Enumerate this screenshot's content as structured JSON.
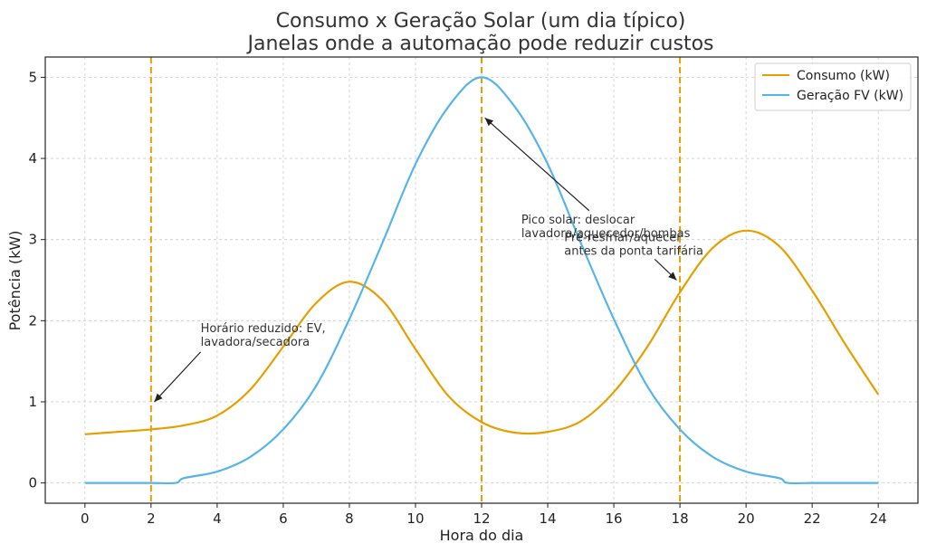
{
  "chart_data": {
    "type": "line",
    "title": [
      "Consumo x Geração Solar (um dia típico)",
      "Janelas onde a automação pode reduzir custos"
    ],
    "xlabel": "Hora do dia",
    "ylabel": "Potência (kW)",
    "xlim": [
      -1.2,
      25.2
    ],
    "ylim": [
      -0.25,
      5.25
    ],
    "xticks": [
      0,
      2,
      4,
      6,
      8,
      10,
      12,
      14,
      16,
      18,
      20,
      22,
      24
    ],
    "yticks": [
      0,
      1,
      2,
      3,
      4,
      5
    ],
    "grid": true,
    "legend_position": "top-right",
    "series": [
      {
        "name": "Consumo (kW)",
        "color": "#E69F00",
        "x": [
          0,
          1,
          2,
          3,
          4,
          5,
          6,
          7,
          8,
          9,
          10,
          11,
          12,
          13,
          14,
          15,
          16,
          17,
          18,
          19,
          20,
          21,
          22,
          23,
          24
        ],
        "y": [
          0.6,
          0.63,
          0.66,
          0.71,
          0.83,
          1.15,
          1.68,
          2.22,
          2.48,
          2.25,
          1.65,
          1.07,
          0.75,
          0.62,
          0.63,
          0.76,
          1.12,
          1.67,
          2.35,
          2.9,
          3.11,
          2.92,
          2.37,
          1.71,
          1.09
        ]
      },
      {
        "name": "Geração FV (kW)",
        "color": "#56B4E9",
        "x": [
          0,
          1,
          2,
          2.75,
          3,
          4,
          5,
          6,
          7,
          8,
          9,
          10,
          11,
          12,
          13,
          14,
          15,
          16,
          17,
          18,
          19,
          20,
          21,
          21.25,
          22,
          23,
          24
        ],
        "y": [
          0,
          0,
          0,
          0,
          0.06,
          0.14,
          0.32,
          0.66,
          1.2,
          2.02,
          2.96,
          3.93,
          4.64,
          5.0,
          4.64,
          3.93,
          2.96,
          2.02,
          1.2,
          0.66,
          0.32,
          0.14,
          0.06,
          0,
          0,
          0,
          0
        ]
      }
    ],
    "vlines": {
      "x": [
        2,
        12,
        18
      ],
      "color": "#E69F00",
      "style": "dashed"
    },
    "annotations": [
      {
        "lines": [
          "Horário reduzido: EV,",
          "lavadora/secadora"
        ],
        "text_at": [
          3.5,
          1.86
        ],
        "arrow_to": [
          2.1,
          1.0
        ]
      },
      {
        "lines": [
          "Pico solar: deslocar",
          "lavadora/aquecedor/bombas"
        ],
        "text_at": [
          13.2,
          3.2
        ],
        "arrow_to": [
          12.1,
          4.5
        ]
      },
      {
        "lines": [
          "Pré-resfriar/aquecer",
          "antes da ponta tarifária"
        ],
        "text_at": [
          14.5,
          2.98
        ],
        "arrow_to": [
          17.9,
          2.5
        ]
      }
    ]
  }
}
